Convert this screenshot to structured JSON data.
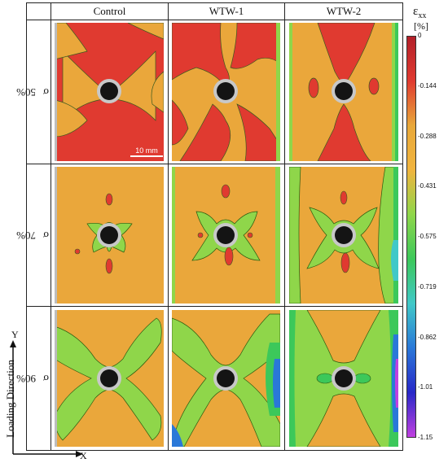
{
  "columns": [
    "Control",
    "WTW-1",
    "WTW-2"
  ],
  "rows": [
    {
      "value": "50%",
      "symbol": "σ",
      "subscript": "n"
    },
    {
      "value": "70%",
      "symbol": "σ",
      "subscript": "n"
    },
    {
      "value": "90%",
      "symbol": "σ",
      "subscript": "n"
    }
  ],
  "scale_bar_label": "10 mm",
  "colorbar": {
    "symbol": "ε",
    "subscript": "xx",
    "unit": "[%]",
    "ticks": [
      "0",
      "-0.144",
      "-0.288",
      "-0.431",
      "-0.575",
      "-0.719",
      "-0.862",
      "-1.01",
      "-1.15"
    ],
    "colors": [
      "#b3202a",
      "#e03a30",
      "#e8a83a",
      "#f0b43e",
      "#8fd64a",
      "#3cc85a",
      "#40c8c8",
      "#2a78d8",
      "#2828c8",
      "#c040e0"
    ]
  },
  "axes": {
    "direction_label": "Loading Direction",
    "x_label": "X",
    "y_label": "Y"
  },
  "strain_fields": {
    "levels": [
      "red",
      "orange",
      "green",
      "cyan",
      "blue"
    ],
    "panels": [
      [
        {
          "dominant": "red"
        },
        {
          "dominant": "red"
        },
        {
          "dominant": "orange"
        }
      ],
      [
        {
          "dominant": "orange"
        },
        {
          "dominant": "orange"
        },
        {
          "dominant": "orange"
        }
      ],
      [
        {
          "dominant": "orange"
        },
        {
          "dominant": "orange"
        },
        {
          "dominant": "green"
        }
      ]
    ]
  }
}
